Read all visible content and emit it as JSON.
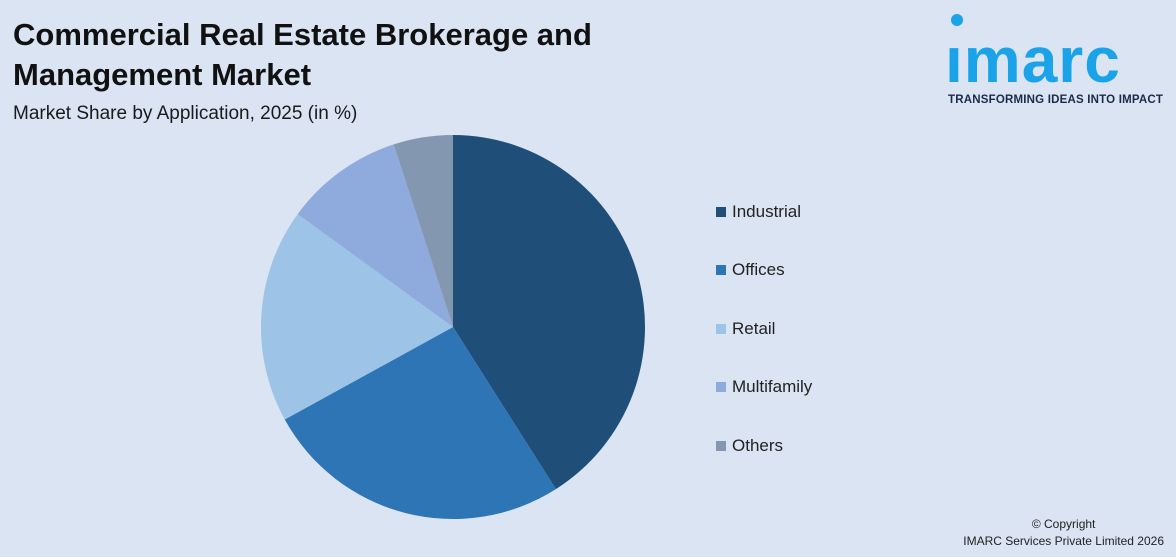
{
  "header": {
    "title": "Commercial Real Estate Brokerage and Management Market",
    "subtitle": "Market Share by Application, 2025 (in %)"
  },
  "logo": {
    "word": "ımarc",
    "tagline": "TRANSFORMING IDEAS INTO IMPACT",
    "color": "#1aa3e8"
  },
  "chart_data": {
    "type": "pie",
    "title": "Commercial Real Estate Brokerage and Management Market",
    "subtitle": "Market Share by Application, 2025 (in %)",
    "legend_position": "right",
    "start_angle_deg": 0,
    "direction": "clockwise",
    "slices": [
      {
        "label": "Industrial",
        "value": 41,
        "color": "#1f4e79"
      },
      {
        "label": "Offices",
        "value": 26,
        "color": "#2e75b6"
      },
      {
        "label": "Retail",
        "value": 18,
        "color": "#9dc3e6"
      },
      {
        "label": "Multifamily",
        "value": 10,
        "color": "#8faadc"
      },
      {
        "label": "Others",
        "value": 5,
        "color": "#8497b0"
      }
    ]
  },
  "footer": {
    "copyright_line1": "© Copyright",
    "copyright_line2": "IMARC Services Private Limited 2026"
  }
}
